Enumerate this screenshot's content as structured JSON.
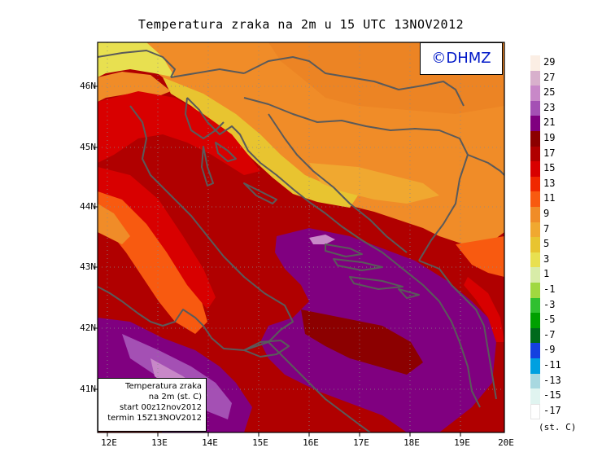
{
  "title": "Temperatura zraka na 2m u 15 UTC 13NOV2012",
  "watermark": "©DHMZ",
  "info_box": {
    "line1": "Temperatura zraka",
    "line2": "na 2m (st. C)",
    "line3": "start 00z12nov2012",
    "line4": "termin 15Z13NOV2012"
  },
  "map": {
    "lon_range": [
      11.75,
      20.0
    ],
    "lat_range": [
      40.25,
      46.75
    ],
    "lon_ticks": [
      {
        "value": 12,
        "label": "12E"
      },
      {
        "value": 13,
        "label": "13E"
      },
      {
        "value": 14,
        "label": "14E"
      },
      {
        "value": 15,
        "label": "15E"
      },
      {
        "value": 16,
        "label": "16E"
      },
      {
        "value": 17,
        "label": "17E"
      },
      {
        "value": 18,
        "label": "18E"
      },
      {
        "value": 19,
        "label": "19E"
      },
      {
        "value": 20,
        "label": "20E"
      }
    ],
    "lat_ticks": [
      {
        "value": 41,
        "label": "41N"
      },
      {
        "value": 42,
        "label": "42N"
      },
      {
        "value": 43,
        "label": "43N"
      },
      {
        "value": 44,
        "label": "44N"
      },
      {
        "value": 45,
        "label": "45N"
      },
      {
        "value": 46,
        "label": "46N"
      }
    ],
    "grid": true,
    "legend_placement": "right"
  },
  "legend": {
    "unit": "(st. C)",
    "bins": [
      {
        "label": "29",
        "color": "#fbeee4"
      },
      {
        "label": "27",
        "color": "#d8b0cc"
      },
      {
        "label": "25",
        "color": "#c888c8"
      },
      {
        "label": "23",
        "color": "#a450b4"
      },
      {
        "label": "21",
        "color": "#800080"
      },
      {
        "label": "19",
        "color": "#8c0000"
      },
      {
        "label": "17",
        "color": "#b00000"
      },
      {
        "label": "15",
        "color": "#d80000"
      },
      {
        "label": "13",
        "color": "#f02800"
      },
      {
        "label": "11",
        "color": "#f85a10"
      },
      {
        "label": "9",
        "color": "#f08c28"
      },
      {
        "label": "7",
        "color": "#f0a830"
      },
      {
        "label": "5",
        "color": "#e8c430"
      },
      {
        "label": "3",
        "color": "#e8e050"
      },
      {
        "label": "1",
        "color": "#d8eca8"
      },
      {
        "label": "-1",
        "color": "#a0d840"
      },
      {
        "label": "-3",
        "color": "#30c030"
      },
      {
        "label": "-5",
        "color": "#00a000"
      },
      {
        "label": "-7",
        "color": "#006a1c"
      },
      {
        "label": "-9",
        "color": "#1440e0"
      },
      {
        "label": "-11",
        "color": "#00a0e0"
      },
      {
        "label": "-13",
        "color": "#a8d8e0"
      },
      {
        "label": "-15",
        "color": "#e0f4f0"
      },
      {
        "label": "-17",
        "color": "#ffffff"
      }
    ]
  },
  "colors": {
    "coastline": "#5a5a5a",
    "grid": "#8a8a8a",
    "watermark_text": "#0018c8"
  }
}
